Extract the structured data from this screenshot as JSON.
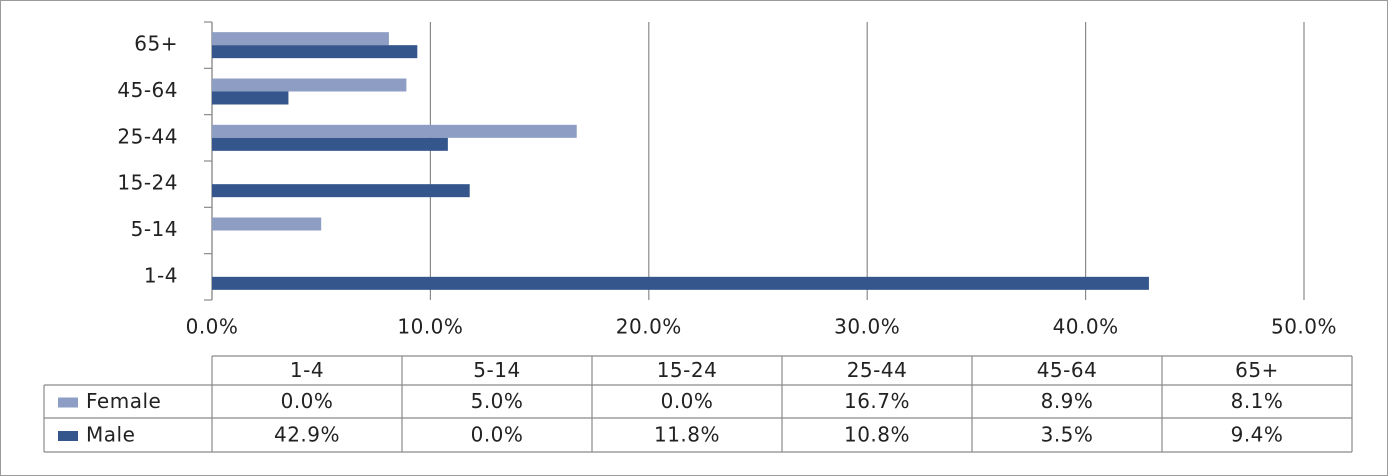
{
  "chart_data": {
    "type": "bar",
    "orientation": "horizontal",
    "categories": [
      "1-4",
      "5-14",
      "15-24",
      "25-44",
      "45-64",
      "65+"
    ],
    "series": [
      {
        "name": "Female",
        "color": "#8d9dc3",
        "values": [
          0.0,
          5.0,
          0.0,
          16.7,
          8.9,
          8.1
        ],
        "value_labels": [
          "0.0%",
          "5.0%",
          "0.0%",
          "16.7%",
          "8.9%",
          "8.1%"
        ]
      },
      {
        "name": "Male",
        "color": "#34568d",
        "values": [
          42.9,
          0.0,
          11.8,
          10.8,
          3.5,
          9.4
        ],
        "value_labels": [
          "42.9%",
          "0.0%",
          "11.8%",
          "10.8%",
          "3.5%",
          "9.4%"
        ]
      }
    ],
    "xlim": [
      0,
      50
    ],
    "xticks": [
      {
        "value": 0,
        "label": "0.0%"
      },
      {
        "value": 10,
        "label": "10.0%"
      },
      {
        "value": 20,
        "label": "20.0%"
      },
      {
        "value": 30,
        "label": "30.0%"
      },
      {
        "value": 40,
        "label": "40.0%"
      },
      {
        "value": 50,
        "label": "50.0%"
      }
    ],
    "grid": true,
    "data_table": true
  }
}
